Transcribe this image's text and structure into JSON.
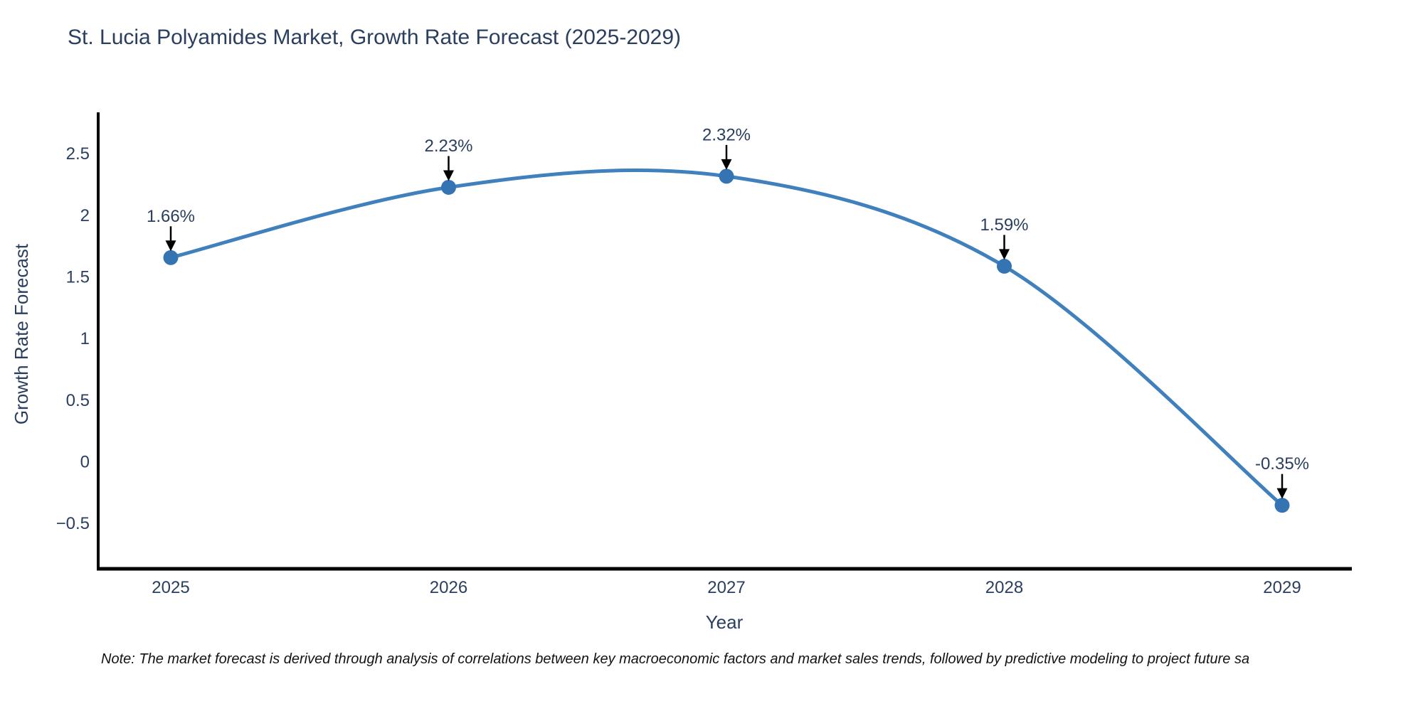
{
  "title": "St. Lucia Polyamides Market, Growth Rate Forecast (2025-2029)",
  "footnote": "Note: The market forecast is derived through analysis of correlations between key macroeconomic factors and market sales trends, followed by predictive modeling to project future sa",
  "colors": {
    "line": "#4080bd",
    "marker": "#3474b3",
    "axis_line": "#000000",
    "text": "#2a3f5f",
    "annotation_arrow": "#000000",
    "note_text": "#131313",
    "background": "#ffffff"
  },
  "chart_data": {
    "type": "line",
    "line_shape": "spline",
    "marker": "circle",
    "grid": false,
    "legend": null,
    "title": "St. Lucia Polyamides Market, Growth Rate Forecast (2025-2029)",
    "xlabel": "Year",
    "ylabel": "Growth Rate Forecast",
    "categories": [
      "2025",
      "2026",
      "2027",
      "2028",
      "2029"
    ],
    "values": [
      1.66,
      2.23,
      2.32,
      1.59,
      -0.35
    ],
    "point_labels": [
      "1.66%",
      "2.23%",
      "2.32%",
      "1.59%",
      "-0.35%"
    ],
    "y_tick_labels": [
      "2.5",
      "2",
      "1.5",
      "1",
      "0.5",
      "0",
      "−0.5"
    ],
    "y_tick_values": [
      2.5,
      2,
      1.5,
      1,
      0.5,
      0,
      -0.5
    ],
    "ylim": [
      -0.87,
      2.83
    ],
    "annotations_style": "down-arrow-to-point"
  }
}
